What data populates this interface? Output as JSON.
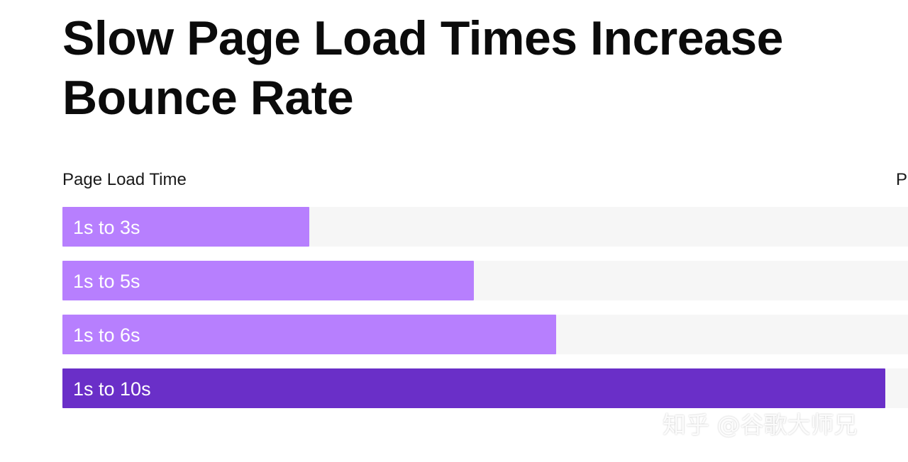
{
  "title": "Slow Page Load Times Increase Bounce Rate",
  "columns": {
    "left": "Page Load Time",
    "right": "P"
  },
  "watermark": "知乎 @谷歌大师兄",
  "chart_data": {
    "type": "bar",
    "orientation": "horizontal",
    "categories": [
      "1s to 3s",
      "1s to 5s",
      "1s to 6s",
      "1s to 10s"
    ],
    "values": [
      30,
      50,
      60,
      100
    ],
    "xlim": [
      0,
      100
    ],
    "title": "Slow Page Load Times Increase Bounce Rate",
    "xlabel": "",
    "ylabel": "Page Load Time",
    "colors": [
      "#b77ffe",
      "#b77ffe",
      "#b77ffe",
      "#6a2fc8"
    ],
    "track_color": "#f6f6f6",
    "grid": false
  }
}
